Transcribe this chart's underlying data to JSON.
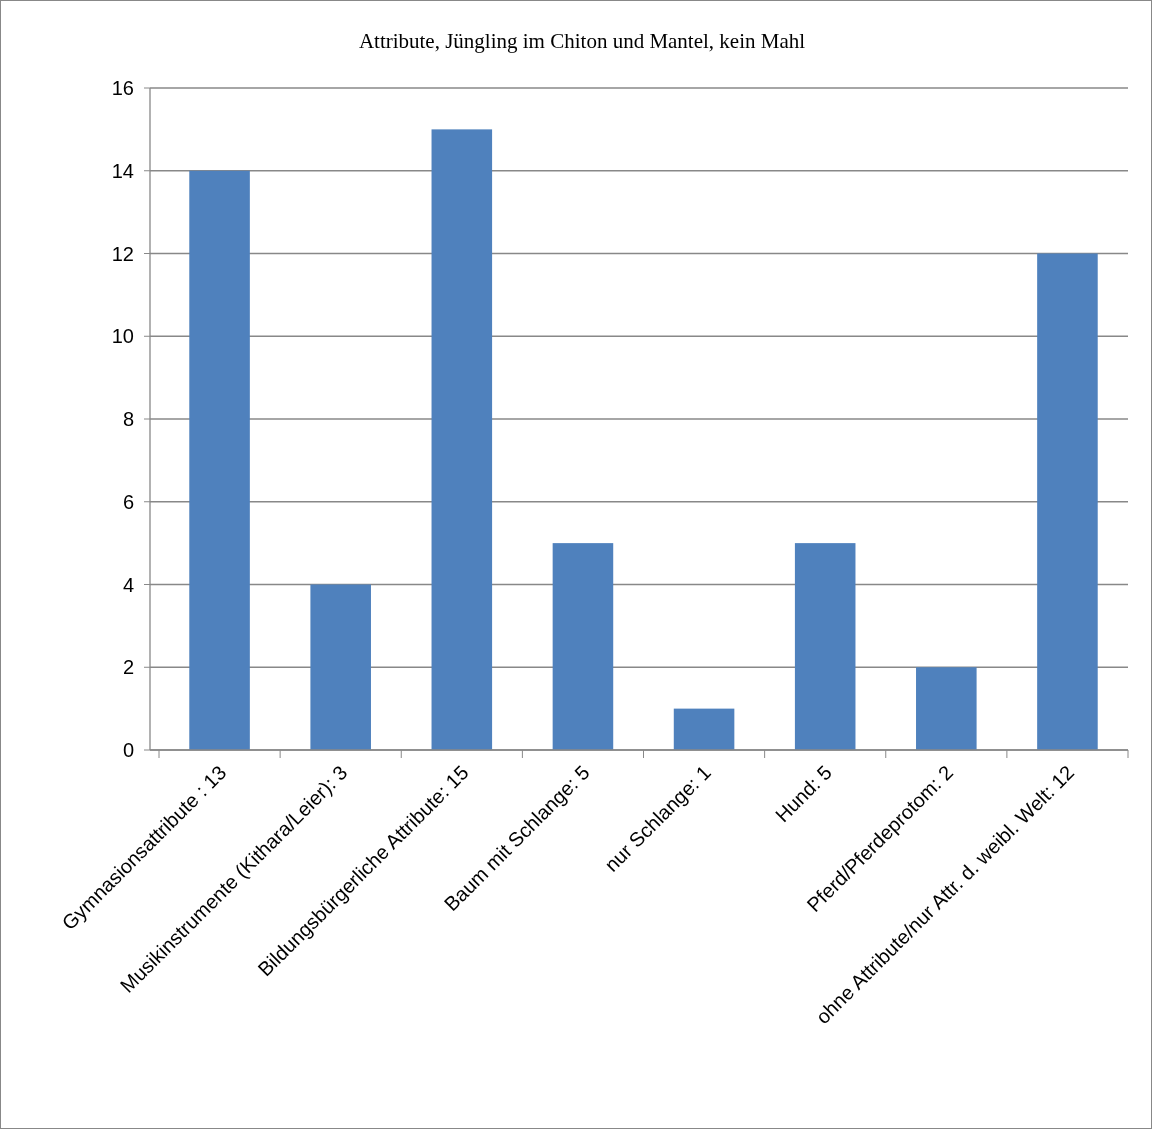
{
  "chart_data": {
    "type": "bar",
    "title": "Attribute, Jüngling im Chiton und Mantel, kein Mahl",
    "categories": [
      "Gymnasionsattribute : 13",
      "Musikinstrumente (Kithara/Leier): 3",
      "Bildungsbürgerliche Attribute: 15",
      "Baum mit Schlange: 5",
      "nur Schlange: 1",
      "Hund: 5",
      "Pferd/Pferdeprotom: 2",
      "ohne Attribute/nur Attr. d. weibl. Welt: 12"
    ],
    "values": [
      14,
      4,
      15,
      5,
      1,
      5,
      2,
      12
    ],
    "color": "#4f81bd",
    "ylim": [
      0,
      16
    ],
    "yticks": [
      0,
      2,
      4,
      6,
      8,
      10,
      12,
      14,
      16
    ],
    "grid": "y"
  }
}
